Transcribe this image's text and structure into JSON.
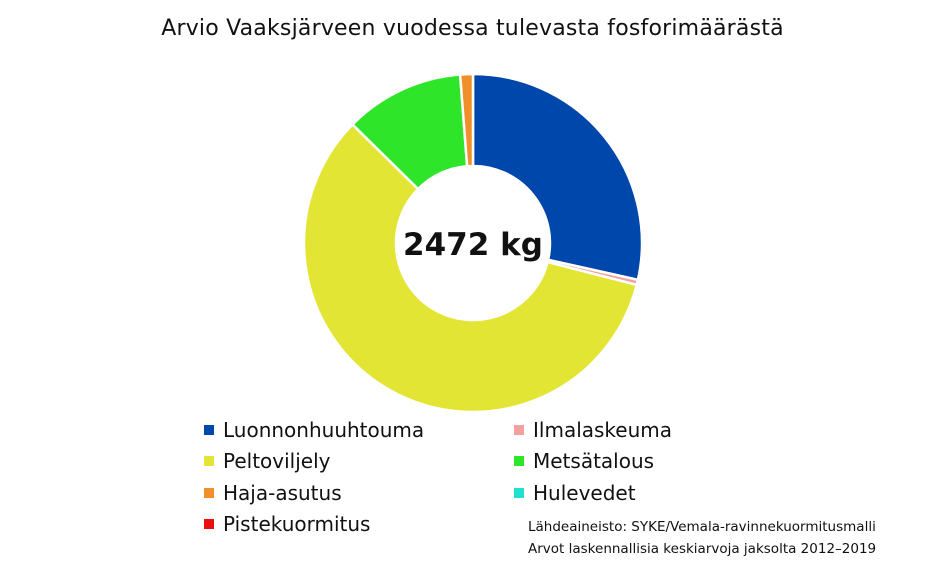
{
  "chart_data": {
    "type": "pie",
    "title": "Arvio Vaaksjärveen vuodessa tulevasta fosforimäärästä",
    "center_label": "2472 kg",
    "categories": [
      "Luonnonhuuhtouma",
      "Ilmalaskeuma",
      "Peltoviljely",
      "Metsätalous",
      "Haja-asutus",
      "Hulevedet",
      "Pistekuormitus"
    ],
    "values": [
      704,
      12,
      1442,
      282,
      30,
      0,
      0
    ],
    "units": "kg",
    "colors": [
      "#0047AB",
      "#F4A0A0",
      "#E3E535",
      "#2EE52A",
      "#F0902A",
      "#22E0D0",
      "#E81010"
    ],
    "legend_position": "bottom",
    "legend_columns": [
      [
        "Luonnonhuuhtouma",
        "Peltoviljely",
        "Haja-asutus",
        "Pistekuormitus"
      ],
      [
        "Ilmalaskeuma",
        "Metsätalous",
        "Hulevedet"
      ]
    ]
  },
  "source_line1": "Lähdeaineisto: SYKE/Vemala-ravinnekuormitusmalli",
  "source_line2": "Arvot laskennallisia keskiarvoja jaksolta 2012–2019"
}
